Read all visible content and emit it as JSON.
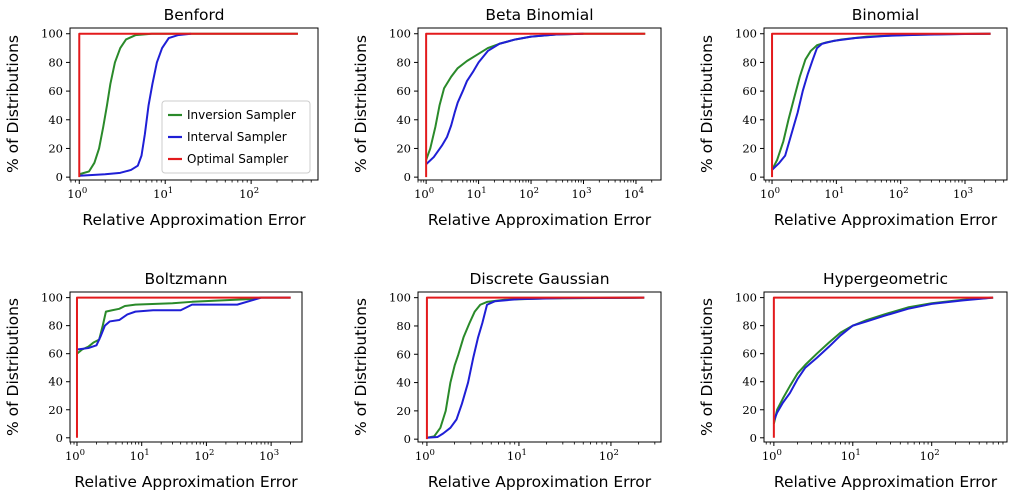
{
  "chart_data": [
    {
      "type": "line",
      "title": "Benford",
      "xlabel": "Relative Approximation Error",
      "ylabel": "% of Distributions",
      "xscale": "log",
      "xlim": [
        0.78,
        600
      ],
      "ylim": [
        -2,
        104
      ],
      "xticks": [
        1,
        10,
        100
      ],
      "xtick_labels": [
        {
          "base": "10",
          "exp": "0"
        },
        {
          "base": "10",
          "exp": "1"
        },
        {
          "base": "10",
          "exp": "2"
        }
      ],
      "yticks": [
        0,
        20,
        40,
        60,
        80,
        100
      ],
      "legend": {
        "placement": "center-right",
        "entries": [
          "Inversion Sampler",
          "Interval Sampler",
          "Optimal Sampler"
        ]
      },
      "series": [
        {
          "name": "Inversion Sampler",
          "color": "#2a8a2a",
          "points": [
            [
              1,
              2
            ],
            [
              1.3,
              4
            ],
            [
              1.5,
              10
            ],
            [
              1.7,
              20
            ],
            [
              1.9,
              35
            ],
            [
              2.1,
              50
            ],
            [
              2.3,
              65
            ],
            [
              2.6,
              80
            ],
            [
              3,
              90
            ],
            [
              3.5,
              96
            ],
            [
              4.5,
              99
            ],
            [
              7,
              100
            ],
            [
              350,
              100
            ]
          ]
        },
        {
          "name": "Interval Sampler",
          "color": "#1f1fd6",
          "points": [
            [
              1,
              1
            ],
            [
              2,
              2
            ],
            [
              3,
              3
            ],
            [
              4,
              5
            ],
            [
              4.8,
              8
            ],
            [
              5.3,
              15
            ],
            [
              5.8,
              30
            ],
            [
              6.4,
              50
            ],
            [
              7.1,
              65
            ],
            [
              8,
              80
            ],
            [
              9.2,
              90
            ],
            [
              11,
              97
            ],
            [
              14,
              99
            ],
            [
              20,
              100
            ]
          ]
        },
        {
          "name": "Optimal Sampler",
          "color": "#e31a1c",
          "points": [
            [
              1,
              0
            ],
            [
              1,
              100
            ],
            [
              350,
              100
            ]
          ]
        }
      ]
    },
    {
      "type": "line",
      "title": "Beta Binomial",
      "xlabel": "Relative Approximation Error",
      "ylabel": "% of Distributions",
      "xscale": "log",
      "xlim": [
        0.7,
        30000
      ],
      "ylim": [
        -2,
        104
      ],
      "xticks": [
        1,
        10,
        100,
        1000,
        10000
      ],
      "xtick_labels": [
        {
          "base": "10",
          "exp": "0"
        },
        {
          "base": "10",
          "exp": "1"
        },
        {
          "base": "10",
          "exp": "2"
        },
        {
          "base": "10",
          "exp": "3"
        },
        {
          "base": "10",
          "exp": "4"
        }
      ],
      "yticks": [
        0,
        20,
        40,
        60,
        80,
        100
      ],
      "series": [
        {
          "name": "Inversion Sampler",
          "color": "#2a8a2a",
          "points": [
            [
              1,
              12
            ],
            [
              1.2,
              20
            ],
            [
              1.5,
              35
            ],
            [
              1.8,
              50
            ],
            [
              2.2,
              62
            ],
            [
              3,
              70
            ],
            [
              4,
              76
            ],
            [
              6,
              81
            ],
            [
              10,
              86
            ],
            [
              15,
              90
            ],
            [
              25,
              93
            ],
            [
              50,
              96
            ],
            [
              100,
              98
            ],
            [
              300,
              99.5
            ],
            [
              1000,
              100
            ],
            [
              15000,
              100
            ]
          ]
        },
        {
          "name": "Interval Sampler",
          "color": "#1f1fd6",
          "points": [
            [
              1,
              9
            ],
            [
              1.4,
              14
            ],
            [
              2,
              22
            ],
            [
              2.5,
              28
            ],
            [
              3,
              36
            ],
            [
              3.5,
              45
            ],
            [
              4,
              52
            ],
            [
              5,
              60
            ],
            [
              6,
              67
            ],
            [
              8,
              74
            ],
            [
              10,
              80
            ],
            [
              15,
              88
            ],
            [
              25,
              93
            ],
            [
              50,
              96
            ],
            [
              100,
              98
            ],
            [
              300,
              99.5
            ],
            [
              1000,
              100
            ]
          ]
        },
        {
          "name": "Optimal Sampler",
          "color": "#e31a1c",
          "points": [
            [
              1,
              0
            ],
            [
              1,
              100
            ],
            [
              15000,
              100
            ]
          ]
        }
      ]
    },
    {
      "type": "line",
      "title": "Binomial",
      "xlabel": "Relative Approximation Error",
      "ylabel": "% of Distributions",
      "xscale": "log",
      "xlim": [
        0.75,
        4500
      ],
      "ylim": [
        -2,
        104
      ],
      "xticks": [
        1,
        10,
        100,
        1000
      ],
      "xtick_labels": [
        {
          "base": "10",
          "exp": "0"
        },
        {
          "base": "10",
          "exp": "1"
        },
        {
          "base": "10",
          "exp": "2"
        },
        {
          "base": "10",
          "exp": "3"
        }
      ],
      "yticks": [
        0,
        20,
        40,
        60,
        80,
        100
      ],
      "series": [
        {
          "name": "Inversion Sampler",
          "color": "#2a8a2a",
          "points": [
            [
              1,
              5
            ],
            [
              1.2,
              12
            ],
            [
              1.5,
              25
            ],
            [
              1.8,
              40
            ],
            [
              2.2,
              55
            ],
            [
              2.7,
              70
            ],
            [
              3.3,
              82
            ],
            [
              4,
              88
            ],
            [
              5,
              92
            ],
            [
              7,
              94
            ],
            [
              12,
              96
            ],
            [
              30,
              98
            ],
            [
              100,
              99
            ],
            [
              500,
              99.7
            ],
            [
              2500,
              100
            ]
          ]
        },
        {
          "name": "Interval Sampler",
          "color": "#1f1fd6",
          "points": [
            [
              1,
              5
            ],
            [
              1.3,
              10
            ],
            [
              1.6,
              15
            ],
            [
              2,
              30
            ],
            [
              2.5,
              45
            ],
            [
              3,
              60
            ],
            [
              3.6,
              72
            ],
            [
              4.3,
              82
            ],
            [
              5,
              90
            ],
            [
              6,
              93
            ],
            [
              9,
              95
            ],
            [
              20,
              97
            ],
            [
              60,
              98.5
            ],
            [
              200,
              99.3
            ],
            [
              1000,
              99.8
            ],
            [
              2500,
              100
            ]
          ]
        },
        {
          "name": "Optimal Sampler",
          "color": "#e31a1c",
          "points": [
            [
              1,
              0
            ],
            [
              1,
              100
            ],
            [
              2500,
              100
            ]
          ]
        }
      ]
    },
    {
      "type": "line",
      "title": "Boltzmann",
      "xlabel": "Relative Approximation Error",
      "ylabel": "% of Distributions",
      "xscale": "log",
      "xlim": [
        0.78,
        3000
      ],
      "ylim": [
        -3,
        104
      ],
      "xticks": [
        1,
        10,
        100,
        1000
      ],
      "xtick_labels": [
        {
          "base": "10",
          "exp": "0"
        },
        {
          "base": "10",
          "exp": "1"
        },
        {
          "base": "10",
          "exp": "2"
        },
        {
          "base": "10",
          "exp": "3"
        }
      ],
      "yticks": [
        0,
        20,
        40,
        60,
        80,
        100
      ],
      "series": [
        {
          "name": "Inversion Sampler",
          "color": "#2a8a2a",
          "points": [
            [
              1,
              60
            ],
            [
              1.2,
              63
            ],
            [
              1.5,
              65
            ],
            [
              1.8,
              68
            ],
            [
              2.2,
              70
            ],
            [
              2.5,
              80
            ],
            [
              2.8,
              90
            ],
            [
              3.5,
              91
            ],
            [
              4.5,
              92
            ],
            [
              5.5,
              94
            ],
            [
              8,
              95
            ],
            [
              30,
              96
            ],
            [
              60,
              97
            ],
            [
              500,
              99
            ],
            [
              700,
              100
            ],
            [
              2000,
              100
            ]
          ]
        },
        {
          "name": "Interval Sampler",
          "color": "#1f1fd6",
          "points": [
            [
              1,
              63
            ],
            [
              1.5,
              64
            ],
            [
              2,
              66
            ],
            [
              2.3,
              72
            ],
            [
              2.7,
              80
            ],
            [
              3.2,
              83
            ],
            [
              4.5,
              84
            ],
            [
              6,
              88
            ],
            [
              8,
              90
            ],
            [
              15,
              91
            ],
            [
              40,
              91
            ],
            [
              60,
              95
            ],
            [
              300,
              95
            ],
            [
              500,
              98
            ],
            [
              700,
              100
            ],
            [
              2000,
              100
            ]
          ]
        },
        {
          "name": "Optimal Sampler",
          "color": "#e31a1c",
          "points": [
            [
              1,
              0
            ],
            [
              1,
              100
            ],
            [
              2000,
              100
            ]
          ]
        }
      ]
    },
    {
      "type": "line",
      "title": "Discrete Gaussian",
      "xlabel": "Relative Approximation Error",
      "ylabel": "% of Distributions",
      "xscale": "log",
      "xlim": [
        0.8,
        350
      ],
      "ylim": [
        -2,
        104
      ],
      "xticks": [
        1,
        10,
        100
      ],
      "xtick_labels": [
        {
          "base": "10",
          "exp": "0"
        },
        {
          "base": "10",
          "exp": "1"
        },
        {
          "base": "10",
          "exp": "2"
        }
      ],
      "yticks": [
        0,
        20,
        40,
        60,
        80,
        100
      ],
      "series": [
        {
          "name": "Inversion Sampler",
          "color": "#2a8a2a",
          "points": [
            [
              1,
              1
            ],
            [
              1.2,
              2
            ],
            [
              1.4,
              8
            ],
            [
              1.6,
              20
            ],
            [
              1.8,
              40
            ],
            [
              2,
              52
            ],
            [
              2.2,
              60
            ],
            [
              2.5,
              72
            ],
            [
              2.9,
              82
            ],
            [
              3.3,
              90
            ],
            [
              3.8,
              95
            ],
            [
              4.5,
              97
            ],
            [
              7,
              98.5
            ],
            [
              20,
              99.5
            ],
            [
              230,
              100
            ]
          ]
        },
        {
          "name": "Interval Sampler",
          "color": "#1f1fd6",
          "points": [
            [
              1,
              1
            ],
            [
              1.3,
              1.5
            ],
            [
              1.5,
              4
            ],
            [
              1.8,
              8
            ],
            [
              2.1,
              14
            ],
            [
              2.4,
              25
            ],
            [
              2.8,
              40
            ],
            [
              3.2,
              58
            ],
            [
              3.6,
              72
            ],
            [
              4,
              82
            ],
            [
              4.5,
              95
            ],
            [
              5.5,
              97.5
            ],
            [
              10,
              99
            ],
            [
              30,
              99.7
            ],
            [
              230,
              100
            ]
          ]
        },
        {
          "name": "Optimal Sampler",
          "color": "#e31a1c",
          "points": [
            [
              1,
              0
            ],
            [
              1,
              100
            ],
            [
              230,
              100
            ]
          ]
        }
      ]
    },
    {
      "type": "line",
      "title": "Hypergeometric",
      "xlabel": "Relative Approximation Error",
      "ylabel": "% of Distributions",
      "xscale": "log",
      "xlim": [
        0.75,
        900
      ],
      "ylim": [
        -3,
        104
      ],
      "xticks": [
        1,
        10,
        100
      ],
      "xtick_labels": [
        {
          "base": "10",
          "exp": "0"
        },
        {
          "base": "10",
          "exp": "1"
        },
        {
          "base": "10",
          "exp": "2"
        }
      ],
      "yticks": [
        0,
        20,
        40,
        60,
        80,
        100
      ],
      "series": [
        {
          "name": "Inversion Sampler",
          "color": "#2a8a2a",
          "points": [
            [
              1,
              10
            ],
            [
              1.1,
              20
            ],
            [
              1.3,
              28
            ],
            [
              1.6,
              37
            ],
            [
              2,
              46
            ],
            [
              2.5,
              52
            ],
            [
              3.5,
              60
            ],
            [
              5,
              68
            ],
            [
              7,
              75
            ],
            [
              10,
              80
            ],
            [
              15,
              84
            ],
            [
              25,
              88
            ],
            [
              50,
              93
            ],
            [
              100,
              96
            ],
            [
              250,
              98.5
            ],
            [
              600,
              100
            ]
          ]
        },
        {
          "name": "Interval Sampler",
          "color": "#1f1fd6",
          "points": [
            [
              1,
              12
            ],
            [
              1.1,
              18
            ],
            [
              1.3,
              25
            ],
            [
              1.6,
              32
            ],
            [
              2,
              42
            ],
            [
              2.5,
              50
            ],
            [
              3.5,
              57
            ],
            [
              5,
              65
            ],
            [
              7,
              73
            ],
            [
              10,
              80
            ],
            [
              15,
              83
            ],
            [
              25,
              87
            ],
            [
              50,
              92
            ],
            [
              100,
              95.5
            ],
            [
              250,
              98
            ],
            [
              600,
              100
            ]
          ]
        },
        {
          "name": "Optimal Sampler",
          "color": "#e31a1c",
          "points": [
            [
              1,
              0
            ],
            [
              1,
              100
            ],
            [
              600,
              100
            ]
          ]
        }
      ]
    }
  ]
}
